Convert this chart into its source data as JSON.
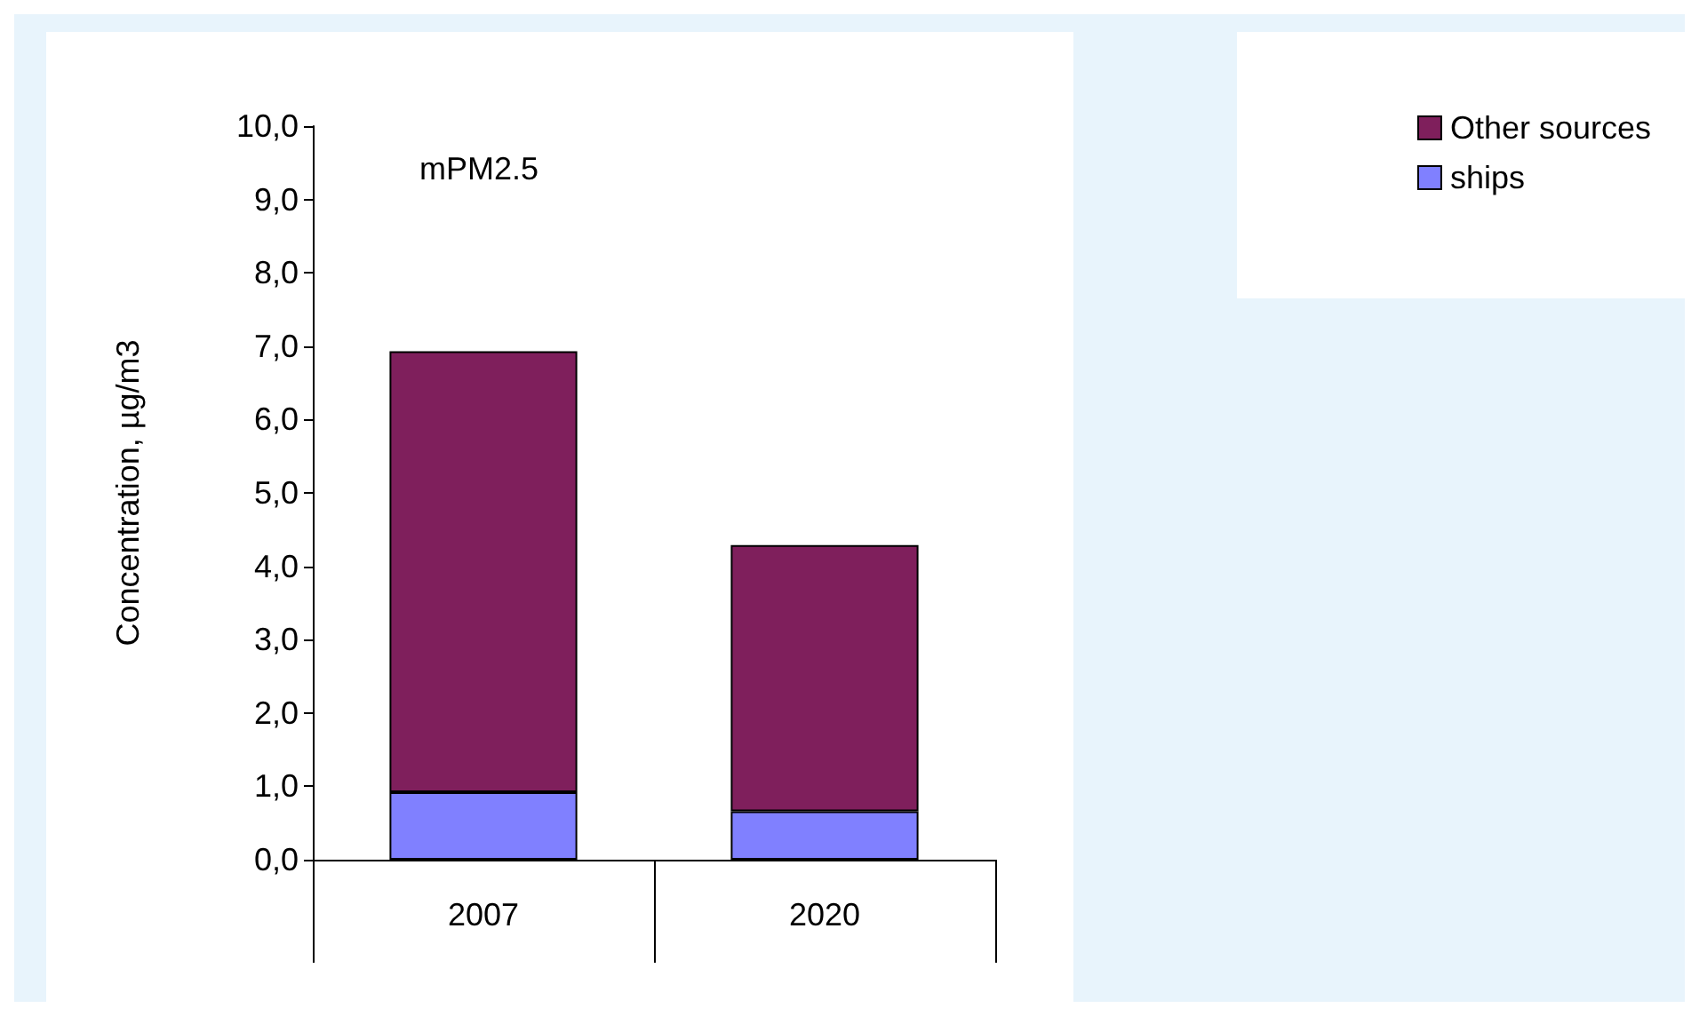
{
  "chart_data": {
    "type": "bar",
    "stacked": true,
    "ylabel": "Concentration, µg/m3",
    "annotations": [
      "mPM2.5"
    ],
    "categories": [
      "2007",
      "2020"
    ],
    "series": [
      {
        "name": "ships",
        "color": "#8080ff",
        "values": [
          0.92,
          0.66
        ]
      },
      {
        "name": "Other sources",
        "color": "#7f1f5c",
        "values": [
          6.01,
          3.63
        ]
      }
    ],
    "ylim": [
      0,
      10
    ],
    "yticks": [
      {
        "value": 0,
        "label": "0,0"
      },
      {
        "value": 1,
        "label": "1,0"
      },
      {
        "value": 2,
        "label": "2,0"
      },
      {
        "value": 3,
        "label": "3,0"
      },
      {
        "value": 4,
        "label": "4,0"
      },
      {
        "value": 5,
        "label": "5,0"
      },
      {
        "value": 6,
        "label": "6,0"
      },
      {
        "value": 7,
        "label": "7,0"
      },
      {
        "value": 8,
        "label": "8,0"
      },
      {
        "value": 9,
        "label": "9,0"
      },
      {
        "value": 10,
        "label": "10,0"
      }
    ],
    "grid": false,
    "legend": "top right"
  }
}
